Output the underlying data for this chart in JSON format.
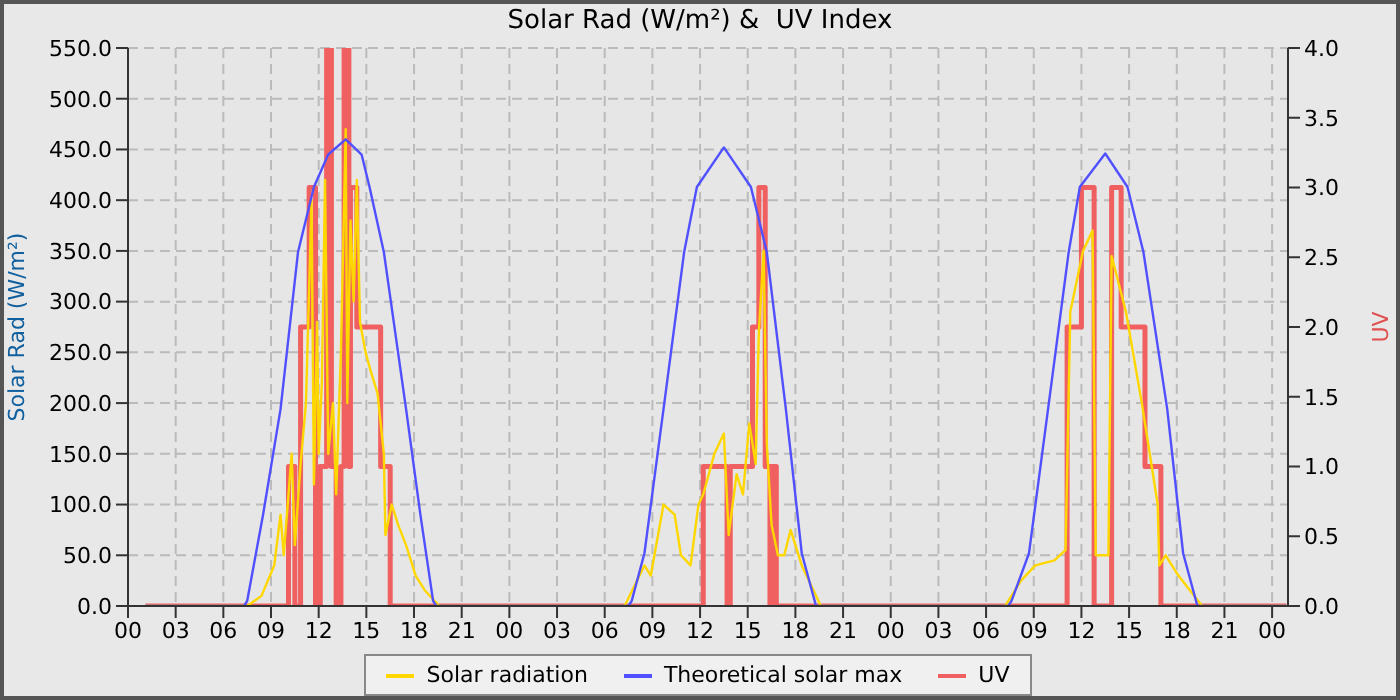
{
  "chart_data": {
    "type": "line",
    "title": "Solar Rad (W/m²) &  UV Index",
    "ylabel": "Solar Rad (W/m²)",
    "y2label": "UV",
    "xlim": [
      0,
      73
    ],
    "xticks": [
      {
        "value": 0,
        "label": "00"
      },
      {
        "value": 3,
        "label": "03"
      },
      {
        "value": 6,
        "label": "06"
      },
      {
        "value": 9,
        "label": "09"
      },
      {
        "value": 12,
        "label": "12"
      },
      {
        "value": 15,
        "label": "15"
      },
      {
        "value": 18,
        "label": "18"
      },
      {
        "value": 21,
        "label": "21"
      },
      {
        "value": 24,
        "label": "00"
      },
      {
        "value": 27,
        "label": "03"
      },
      {
        "value": 30,
        "label": "06"
      },
      {
        "value": 33,
        "label": "09"
      },
      {
        "value": 36,
        "label": "12"
      },
      {
        "value": 39,
        "label": "15"
      },
      {
        "value": 42,
        "label": "18"
      },
      {
        "value": 45,
        "label": "21"
      },
      {
        "value": 48,
        "label": "00"
      },
      {
        "value": 51,
        "label": "03"
      },
      {
        "value": 54,
        "label": "06"
      },
      {
        "value": 57,
        "label": "09"
      },
      {
        "value": 60,
        "label": "12"
      },
      {
        "value": 63,
        "label": "15"
      },
      {
        "value": 66,
        "label": "18"
      },
      {
        "value": 69,
        "label": "21"
      },
      {
        "value": 72,
        "label": "00"
      }
    ],
    "ylim": [
      0,
      550
    ],
    "yticks": [
      {
        "value": 0,
        "label": "0.0"
      },
      {
        "value": 50,
        "label": "50.0"
      },
      {
        "value": 100,
        "label": "100.0"
      },
      {
        "value": 150,
        "label": "150.0"
      },
      {
        "value": 200,
        "label": "200.0"
      },
      {
        "value": 250,
        "label": "250.0"
      },
      {
        "value": 300,
        "label": "300.0"
      },
      {
        "value": 350,
        "label": "350.0"
      },
      {
        "value": 400,
        "label": "400.0"
      },
      {
        "value": 450,
        "label": "450.0"
      },
      {
        "value": 500,
        "label": "500.0"
      },
      {
        "value": 550,
        "label": "550.0"
      }
    ],
    "y2lim": [
      0,
      4
    ],
    "y2ticks": [
      {
        "value": 0,
        "label": "0.0"
      },
      {
        "value": 0.5,
        "label": "0.5"
      },
      {
        "value": 1,
        "label": "1.0"
      },
      {
        "value": 1.5,
        "label": "1.5"
      },
      {
        "value": 2,
        "label": "2.0"
      },
      {
        "value": 2.5,
        "label": "2.5"
      },
      {
        "value": 3,
        "label": "3.0"
      },
      {
        "value": 3.5,
        "label": "3.5"
      },
      {
        "value": 4,
        "label": "4.0"
      }
    ],
    "grid": true,
    "legend": "bottom",
    "series": [
      {
        "name": "Solar radiation",
        "color": "#ffd700",
        "x": [
          1.1,
          7.5,
          8.4,
          9.2,
          9.6,
          9.8,
          10.3,
          10.5,
          10.86,
          11.2,
          11.55,
          11.7,
          11.9,
          12.0,
          12.2,
          12.4,
          12.6,
          12.9,
          13.1,
          13.4,
          13.7,
          13.8,
          14.0,
          14.2,
          14.4,
          14.6,
          14.95,
          15.3,
          15.7,
          16.1,
          16.2,
          16.6,
          17.0,
          17.5,
          18.1,
          18.7,
          19.6,
          31.25,
          32.5,
          32.9,
          33.7,
          34.4,
          34.8,
          35.4,
          35.9,
          36.2,
          36.9,
          37.5,
          37.8,
          38.3,
          38.7,
          39.1,
          39.5,
          39.7,
          40.0,
          40.2,
          40.5,
          40.9,
          41.3,
          41.7,
          42.4,
          43.6,
          55.2,
          56.2,
          57.1,
          58.3,
          59.0,
          59.3,
          60.1,
          60.7,
          60.9,
          61.7,
          61.9,
          62.8,
          63.8,
          64.8,
          64.9,
          65.3,
          66.1,
          67.6,
          72.9
        ],
        "values": [
          0,
          0,
          10,
          40,
          90,
          50,
          150,
          60,
          140,
          200,
          400,
          120,
          280,
          150,
          220,
          420,
          150,
          200,
          110,
          250,
          470,
          200,
          380,
          300,
          420,
          280,
          250,
          230,
          210,
          150,
          70,
          100,
          80,
          60,
          30,
          15,
          0,
          0,
          40,
          30,
          100,
          90,
          50,
          40,
          100,
          110,
          150,
          170,
          70,
          130,
          110,
          180,
          140,
          270,
          350,
          160,
          80,
          50,
          50,
          75,
          40,
          0,
          0,
          25,
          40,
          45,
          55,
          290,
          350,
          370,
          50,
          50,
          345,
          290,
          200,
          100,
          40,
          50,
          30,
          0,
          0
        ]
      },
      {
        "name": "Theoretical solar max",
        "color": "#5050ff",
        "x": [
          1.1,
          7.3,
          7.5,
          8.5,
          9.6,
          10.7,
          11.7,
          12.6,
          13.7,
          14.7,
          15.2,
          16.1,
          17.5,
          18.4,
          19.2,
          19.4,
          31.5,
          31.7,
          32.5,
          33.7,
          35.0,
          35.8,
          37.5,
          39.2,
          40.2,
          41.4,
          42.4,
          43.3,
          55.4,
          55.6,
          56.7,
          57.9,
          59.2,
          59.9,
          61.5,
          62.9,
          63.9,
          65.4,
          66.4,
          67.3,
          72.9
        ],
        "values": [
          0,
          0,
          5,
          90,
          194,
          349,
          413,
          445,
          460,
          445,
          413,
          349,
          194,
          90,
          5,
          0,
          0,
          5,
          52,
          194,
          349,
          413,
          452,
          413,
          349,
          194,
          52,
          0,
          0,
          5,
          52,
          194,
          349,
          413,
          446,
          413,
          349,
          194,
          52,
          0,
          0
        ]
      },
      {
        "name": "UV",
        "type": "step",
        "axis": "y2",
        "color": "#f06060",
        "x": [
          1.1,
          10.1,
          10.5,
          10.86,
          11.4,
          11.8,
          12.1,
          12.5,
          12.8,
          13.1,
          13.4,
          13.6,
          13.9,
          14.0,
          14.4,
          15.9,
          16.5,
          36.2,
          37.7,
          37.9,
          39.3,
          39.7,
          40.1,
          40.4,
          40.5,
          40.8,
          59.1,
          60.0,
          60.8,
          61.9,
          62.5,
          64.0,
          65.0,
          72.9
        ],
        "values": [
          0,
          1,
          0,
          2,
          3,
          0,
          1,
          4,
          1,
          0,
          1,
          4,
          1,
          3,
          2,
          1,
          0,
          1,
          0,
          1,
          2,
          3,
          1,
          0,
          1,
          0,
          2,
          3,
          0,
          3,
          2,
          1,
          0,
          0
        ]
      }
    ]
  }
}
